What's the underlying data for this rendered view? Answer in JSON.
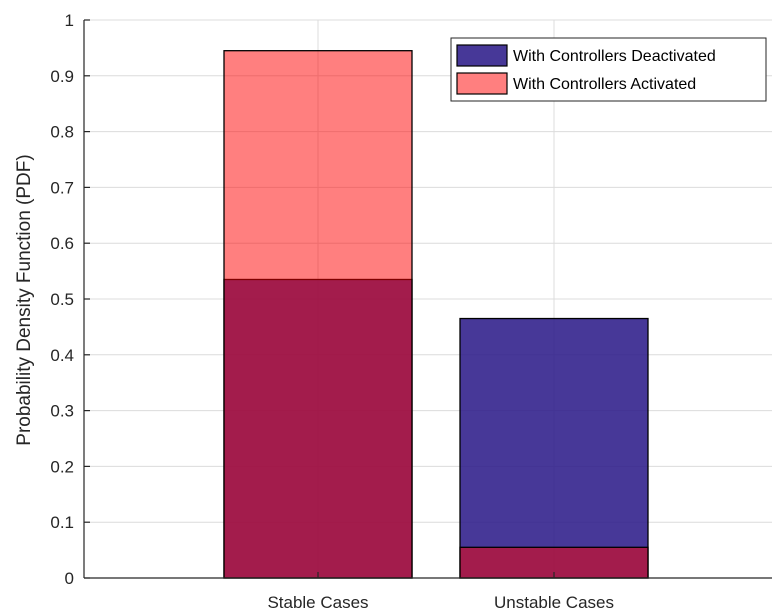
{
  "chart_data": {
    "type": "bar",
    "categories": [
      "Stable Cases",
      "Unstable Cases"
    ],
    "series": [
      {
        "name": "With Controllers Deactivated",
        "values": [
          0.535,
          0.465
        ],
        "color": "#2e1d8a",
        "opacity": 0.88
      },
      {
        "name": "With Controllers Activated",
        "values": [
          0.945,
          0.055
        ],
        "color": "#ff0000",
        "opacity": 0.5
      }
    ],
    "ylabel": "Probability Density Function (PDF)",
    "xlabel": "",
    "ylim": [
      0,
      1
    ],
    "yticks": [
      "0",
      "0.1",
      "0.2",
      "0.3",
      "0.4",
      "0.5",
      "0.6",
      "0.7",
      "0.8",
      "0.9",
      "1"
    ],
    "grid": true,
    "legend_position": "top-right"
  }
}
